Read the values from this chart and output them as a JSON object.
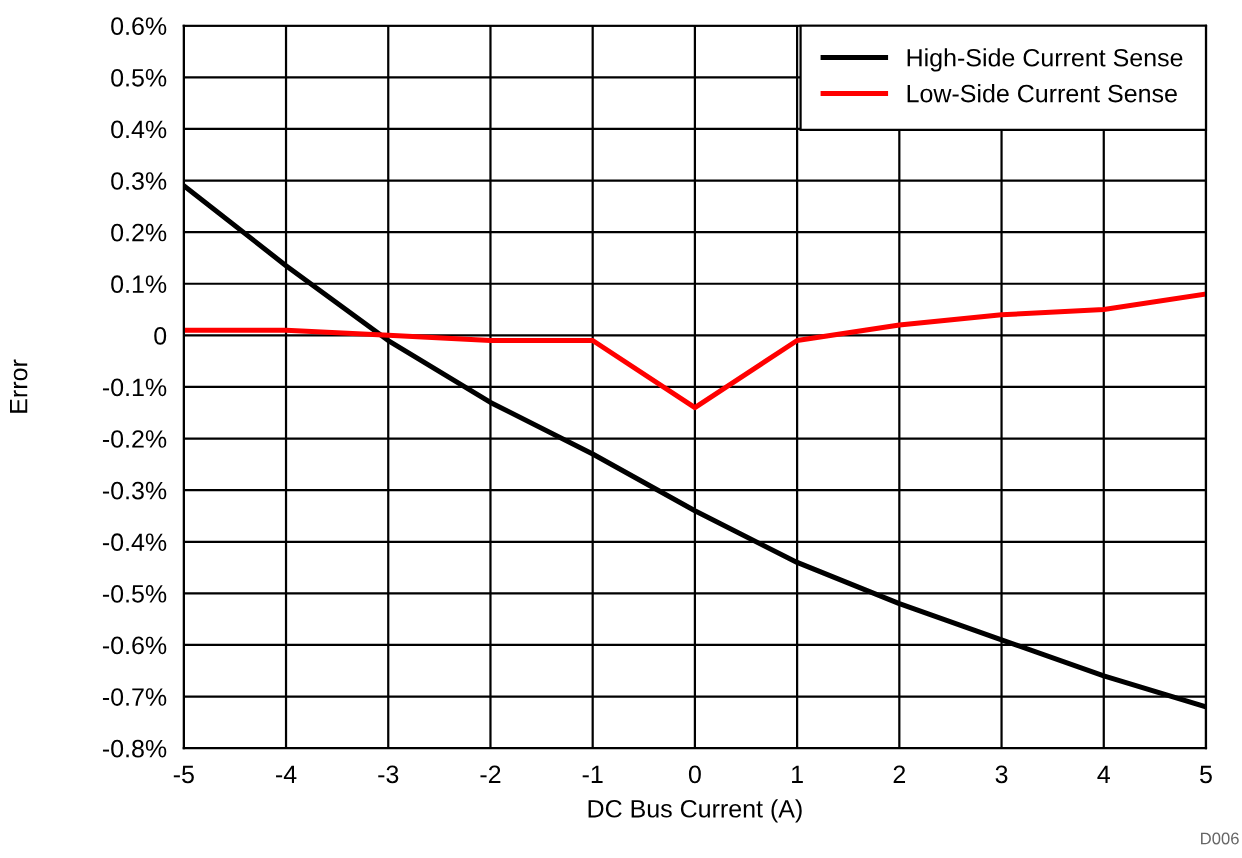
{
  "chart_data": {
    "type": "line",
    "xlabel": "DC Bus Current (A)",
    "ylabel": "Error",
    "x": [
      -5,
      -4,
      -3,
      -2,
      -1,
      0,
      1,
      2,
      3,
      4,
      5
    ],
    "series": [
      {
        "name": "High-Side Current Sense",
        "color": "#000000",
        "values": [
          0.29,
          0.135,
          -0.01,
          -0.13,
          -0.23,
          -0.34,
          -0.44,
          -0.52,
          -0.59,
          -0.66,
          -0.72
        ]
      },
      {
        "name": "Low-Side Current Sense",
        "color": "#ff0000",
        "values": [
          0.01,
          0.01,
          0.0,
          -0.01,
          -0.01,
          -0.14,
          -0.01,
          0.02,
          0.04,
          0.05,
          0.08
        ]
      }
    ],
    "xlim": [
      -5,
      5
    ],
    "xticks": [
      -5,
      -4,
      -3,
      -2,
      -1,
      0,
      1,
      2,
      3,
      4,
      5
    ],
    "ylim": [
      -0.8,
      0.6
    ],
    "yticks": [
      {
        "value": -0.8,
        "label": "-0.8%"
      },
      {
        "value": -0.7,
        "label": "-0.7%"
      },
      {
        "value": -0.6,
        "label": "-0.6%"
      },
      {
        "value": -0.5,
        "label": "-0.5%"
      },
      {
        "value": -0.4,
        "label": "-0.4%"
      },
      {
        "value": -0.3,
        "label": "-0.3%"
      },
      {
        "value": -0.2,
        "label": "-0.2%"
      },
      {
        "value": -0.1,
        "label": "-0.1%"
      },
      0,
      {
        "value": 0.1,
        "label": "0.1%"
      },
      {
        "value": 0.2,
        "label": "0.2%"
      },
      {
        "value": 0.3,
        "label": "0.3%"
      },
      {
        "value": 0.4,
        "label": "0.4%"
      },
      {
        "value": 0.5,
        "label": "0.5%"
      },
      {
        "value": 0.6,
        "label": "0.6%"
      }
    ],
    "grid": true,
    "legend": "top right",
    "marker": "none",
    "line_style": "solid",
    "annotations": [
      "D006"
    ]
  }
}
